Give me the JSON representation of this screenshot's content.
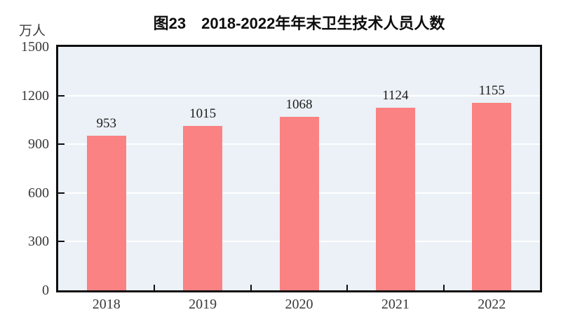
{
  "chart": {
    "title": "图23　2018-2022年年末卫生技术人员人数",
    "unit": "万人"
  },
  "chart_data": {
    "type": "bar",
    "title": "图23　2018-2022年年末卫生技术人员人数",
    "unit_label": "万人",
    "categories": [
      "2018",
      "2019",
      "2020",
      "2021",
      "2022"
    ],
    "values": [
      953,
      1015,
      1068,
      1124,
      1155
    ],
    "xlabel": "",
    "ylabel": "万人",
    "ylim": [
      0,
      1500
    ],
    "yticks": [
      0,
      300,
      600,
      900,
      1200,
      1500
    ],
    "grid": true,
    "legend": false,
    "bar_color": "#FA8282",
    "plot_background": "#EBF1F6",
    "gridline_color": "#FFFFFF",
    "frame_color": "#0E0E0E"
  }
}
